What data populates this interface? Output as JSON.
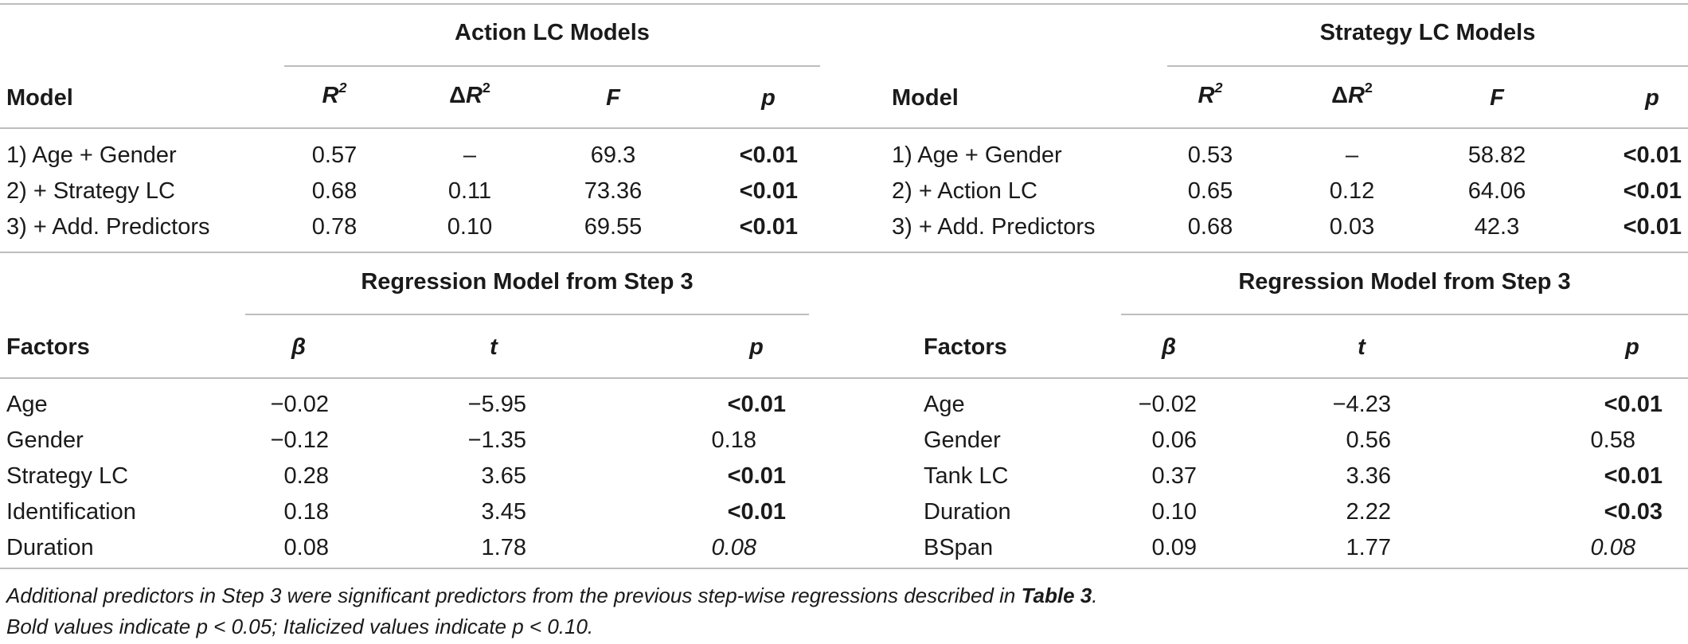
{
  "top": {
    "left": {
      "group_title": "Action LC Models",
      "headers": {
        "model": "Model",
        "r2": "R",
        "dr2_delta": "Δ",
        "dr2_r": "R",
        "sup": "2",
        "f": "F",
        "p": "p"
      },
      "rows": [
        {
          "model": "1) Age + Gender",
          "r2": "0.57",
          "dr2": "–",
          "f": "69.3",
          "p": "<0.01"
        },
        {
          "model": "2) + Strategy LC",
          "r2": "0.68",
          "dr2": "0.11",
          "f": "73.36",
          "p": "<0.01"
        },
        {
          "model": "3) + Add. Predictors",
          "r2": "0.78",
          "dr2": "0.10",
          "f": "69.55",
          "p": "<0.01"
        }
      ]
    },
    "right": {
      "group_title": "Strategy LC Models",
      "headers": {
        "model": "Model",
        "r2": "R",
        "dr2_delta": "Δ",
        "dr2_r": "R",
        "sup": "2",
        "f": "F",
        "p": "p"
      },
      "rows": [
        {
          "model": "1) Age + Gender",
          "r2": "0.53",
          "dr2": "–",
          "f": "58.82",
          "p": "<0.01"
        },
        {
          "model": "2) + Action LC",
          "r2": "0.65",
          "dr2": "0.12",
          "f": "64.06",
          "p": "<0.01"
        },
        {
          "model": "3) + Add. Predictors",
          "r2": "0.68",
          "dr2": "0.03",
          "f": "42.3",
          "p": "<0.01"
        }
      ]
    }
  },
  "bottom": {
    "left": {
      "group_title": "Regression Model from Step 3",
      "headers": {
        "factors": "Factors",
        "beta": "β",
        "t": "t",
        "p": "p"
      },
      "rows": [
        {
          "factor": "Age",
          "beta": "−0.02",
          "t": "−5.95",
          "p": "<0.01",
          "style": "bold"
        },
        {
          "factor": "Gender",
          "beta": "−0.12",
          "t": "−1.35",
          "p": "0.18",
          "style": "normal"
        },
        {
          "factor": "Strategy LC",
          "beta": "0.28",
          "t": "3.65",
          "p": "<0.01",
          "style": "bold"
        },
        {
          "factor": "Identification",
          "beta": "0.18",
          "t": "3.45",
          "p": "<0.01",
          "style": "bold"
        },
        {
          "factor": "Duration",
          "beta": "0.08",
          "t": "1.78",
          "p": "0.08",
          "style": "italic"
        }
      ]
    },
    "right": {
      "group_title": "Regression Model from Step 3",
      "headers": {
        "factors": "Factors",
        "beta": "β",
        "t": "t",
        "p": "p"
      },
      "rows": [
        {
          "factor": "Age",
          "beta": "−0.02",
          "t": "−4.23",
          "p": "<0.01",
          "style": "bold"
        },
        {
          "factor": "Gender",
          "beta": "0.06",
          "t": "0.56",
          "p": "0.58",
          "style": "normal"
        },
        {
          "factor": "Tank LC",
          "beta": "0.37",
          "t": "3.36",
          "p": "<0.01",
          "style": "bold"
        },
        {
          "factor": "Duration",
          "beta": "0.10",
          "t": "2.22",
          "p": "<0.03",
          "style": "bold"
        },
        {
          "factor": "BSpan",
          "beta": "0.09",
          "t": "1.77",
          "p": "0.08",
          "style": "italic"
        }
      ]
    }
  },
  "notes": {
    "line1_prefix": "Additional predictors in Step 3 were significant predictors from the previous step-wise regressions described in ",
    "line1_ref": "Table 3",
    "line1_suffix": ".",
    "line2": "Bold values indicate p < 0.05; Italicized values indicate p < 0.10."
  }
}
